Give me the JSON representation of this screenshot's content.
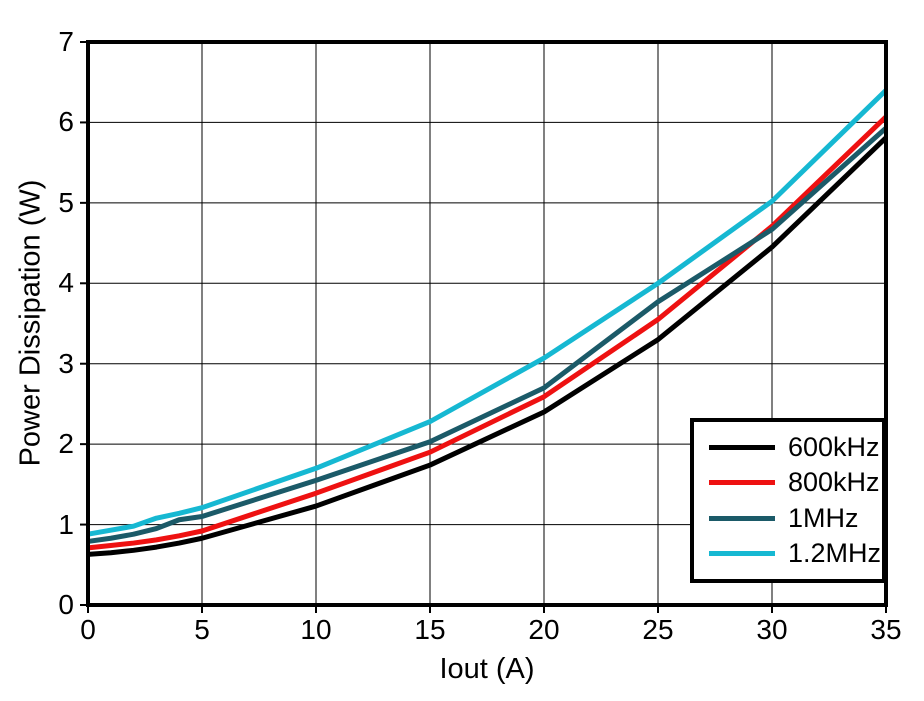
{
  "chart_data": {
    "type": "line",
    "title": "",
    "xlabel": "Iout (A)",
    "ylabel": "Power Dissipation (W)",
    "xlim": [
      0,
      35
    ],
    "ylim": [
      0,
      7
    ],
    "x_ticks": [
      0,
      5,
      10,
      15,
      20,
      25,
      30,
      35
    ],
    "y_ticks": [
      0,
      1,
      2,
      3,
      4,
      5,
      6,
      7
    ],
    "grid": true,
    "grid_color": "#000000",
    "frame_color": "#000000",
    "legend_position": "lower-right",
    "x": [
      0,
      1,
      2,
      3,
      4,
      5,
      10,
      15,
      20,
      25,
      30,
      35
    ],
    "series": [
      {
        "name": "600kHz",
        "color": "#000000",
        "values": [
          0.63,
          0.65,
          0.68,
          0.72,
          0.77,
          0.83,
          1.23,
          1.74,
          2.4,
          3.3,
          4.45,
          5.81
        ]
      },
      {
        "name": "800kHz",
        "color": "#ee1111",
        "values": [
          0.71,
          0.74,
          0.77,
          0.81,
          0.86,
          0.92,
          1.39,
          1.9,
          2.59,
          3.55,
          4.71,
          6.07
        ]
      },
      {
        "name": "1MHz",
        "color": "#1b5a68",
        "values": [
          0.79,
          0.83,
          0.88,
          0.95,
          1.06,
          1.1,
          1.55,
          2.03,
          2.7,
          3.77,
          4.67,
          5.93
        ]
      },
      {
        "name": "1.2MHz",
        "color": "#16b8d2",
        "values": [
          0.88,
          0.93,
          0.98,
          1.08,
          1.14,
          1.21,
          1.7,
          2.28,
          3.07,
          4.0,
          5.02,
          6.4
        ]
      }
    ]
  }
}
